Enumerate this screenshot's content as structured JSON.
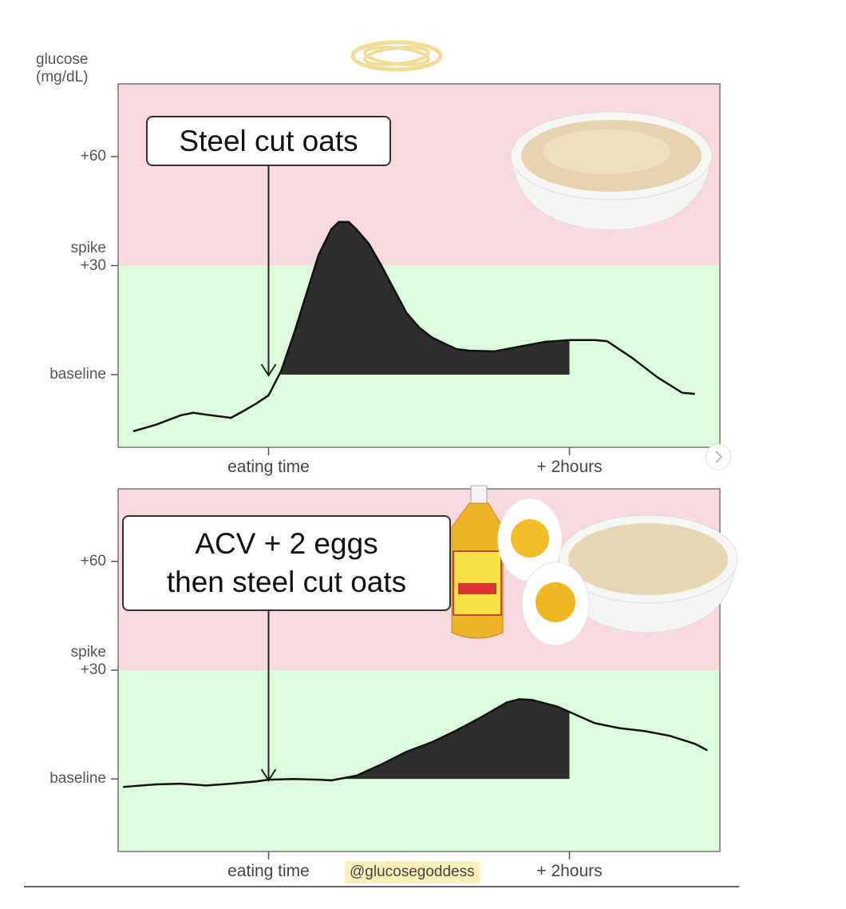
{
  "chart_data": [
    {
      "type": "line",
      "ylabel": "glucose\n(mg/dL)",
      "annotation": "Steel cut oats",
      "x": [
        -54,
        -45,
        -35,
        -30,
        -25,
        -15,
        -10,
        -5,
        0,
        5,
        10,
        15,
        20,
        25,
        28,
        32,
        35,
        40,
        45,
        50,
        55,
        60,
        65,
        70,
        75,
        80,
        90,
        100,
        110,
        120,
        130,
        135,
        145,
        155,
        165,
        170
      ],
      "values": [
        -15.6,
        -13.8,
        -11.2,
        -10.5,
        -11,
        -11.9,
        -10,
        -8,
        -5.7,
        1,
        11,
        22,
        33,
        40,
        42,
        42,
        40,
        36,
        30,
        23.5,
        17,
        13,
        10.3,
        8.6,
        7,
        6.6,
        6.4,
        7.7,
        9,
        9.5,
        9.5,
        9.2,
        4.6,
        -0.7,
        -5,
        -5.3
      ],
      "color": "#111111",
      "shade_xlim": [
        3,
        120
      ],
      "shade_color": "#2e2e2e",
      "zones": [
        {
          "from": 30,
          "to": 80,
          "color": "#f9d9de"
        },
        {
          "from": -20,
          "to": 30,
          "color": "#dcfadc"
        }
      ],
      "xlim": [
        -60,
        180
      ],
      "xticks": [
        {
          "value": 0,
          "label": "eating time"
        },
        {
          "value": 120,
          "label": "+ 2hours"
        }
      ],
      "ylim": [
        -20,
        80
      ],
      "yticks": [
        {
          "value": 0,
          "label": "baseline"
        },
        {
          "value": 30,
          "label": "spike\n+30"
        },
        {
          "value": 60,
          "label": "+60"
        }
      ]
    },
    {
      "type": "line",
      "annotation": "ACV + 2 eggs\nthen steel cut oats",
      "x": [
        -58,
        -45,
        -35,
        -25,
        -15,
        -5,
        0,
        10,
        20,
        25,
        35,
        45,
        55,
        65,
        75,
        85,
        95,
        100,
        105,
        115,
        120,
        130,
        140,
        150,
        160,
        170,
        175
      ],
      "values": [
        -2.2,
        -1.5,
        -1.3,
        -1.8,
        -1.3,
        -0.7,
        -0.2,
        0,
        -0.2,
        -0.4,
        0.9,
        4,
        7.5,
        10.1,
        13.4,
        17.1,
        21.1,
        22,
        21.8,
        20,
        18.5,
        15.4,
        14,
        13.2,
        11.9,
        9.7,
        7.9
      ],
      "color": "#111111",
      "shade_xlim": [
        0,
        120
      ],
      "shade_color": "#2e2e2e",
      "zones": [
        {
          "from": 30,
          "to": 80,
          "color": "#f9d9de"
        },
        {
          "from": -20,
          "to": 30,
          "color": "#dcfadc"
        }
      ],
      "xlim": [
        -60,
        180
      ],
      "xticks": [
        {
          "value": 0,
          "label": "eating time"
        },
        {
          "value": 120,
          "label": "+ 2hours"
        }
      ],
      "ylim": [
        -20,
        80
      ],
      "yticks": [
        {
          "value": 0,
          "label": "baseline"
        },
        {
          "value": 30,
          "label": "spike\n+30"
        },
        {
          "value": 60,
          "label": "+60"
        }
      ]
    }
  ],
  "credit": "@glucosegoddess"
}
